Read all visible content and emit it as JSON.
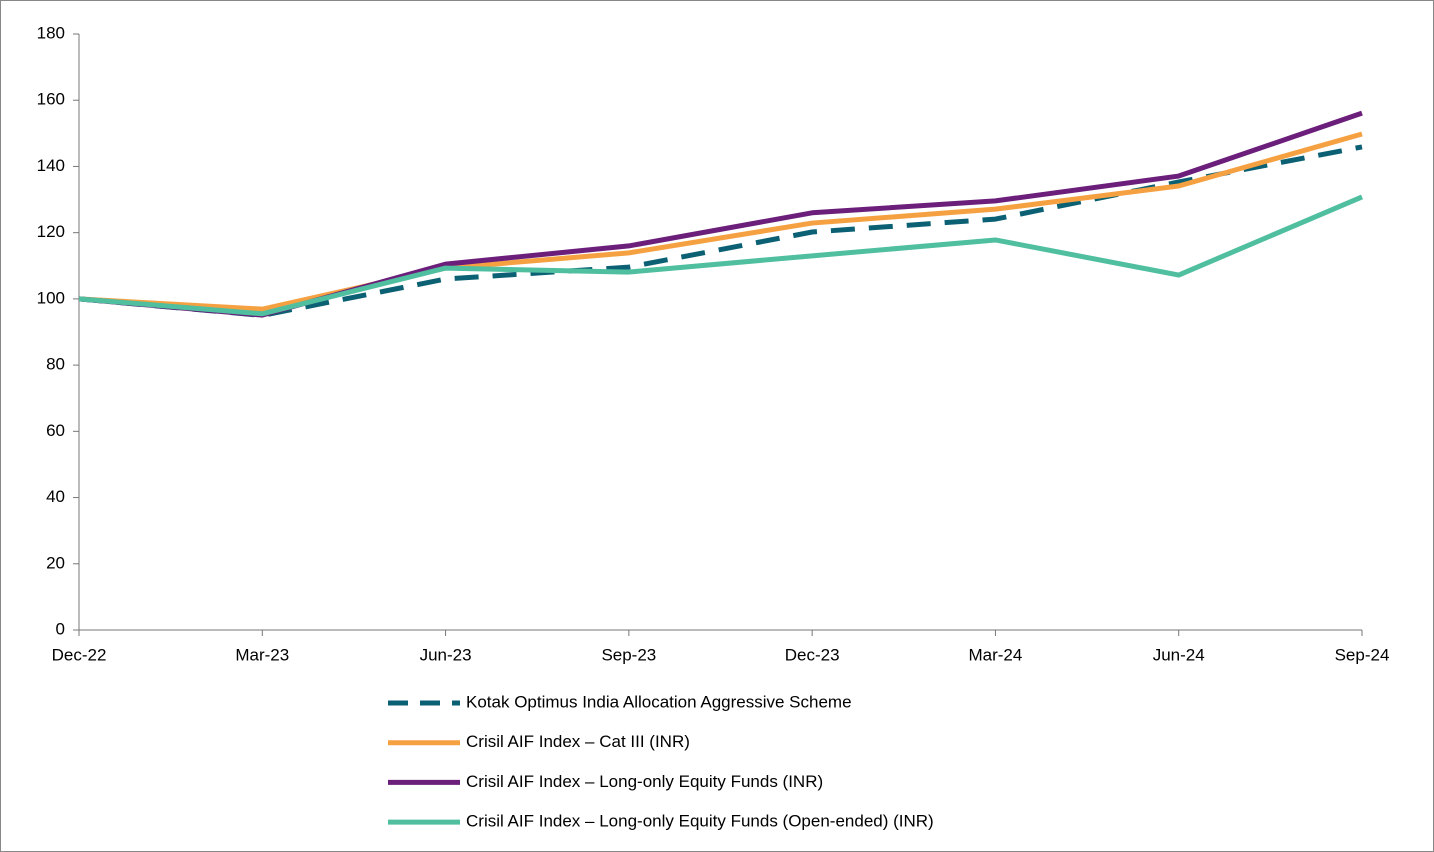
{
  "chart_data": {
    "type": "line",
    "categories": [
      "Dec-22",
      "Mar-23",
      "Jun-23",
      "Sep-23",
      "Dec-23",
      "Mar-24",
      "Jun-24",
      "Sep-24"
    ],
    "series": [
      {
        "name": "Kotak Optimus India Allocation Aggressive Scheme",
        "color": "#0b6173",
        "line_style": "dashed",
        "values": [
          100,
          95,
          106,
          109.6,
          120.2,
          124.1,
          135.3,
          145.9
        ]
      },
      {
        "name": "Crisil AIF Index – Cat III (INR)",
        "color": "#f5a142",
        "line_style": "solid",
        "values": [
          100,
          96.9,
          109.3,
          113.9,
          122.9,
          127.1,
          134.1,
          149.8
        ]
      },
      {
        "name": "Crisil AIF Index – Long-only Equity Funds (INR)",
        "color": "#6b1f7a",
        "line_style": "solid",
        "values": [
          100,
          95.1,
          110.5,
          116,
          126,
          129.6,
          137.1,
          156.1
        ]
      },
      {
        "name": "Crisil AIF Index – Long-only Equity Funds (Open-ended) (INR)",
        "color": "#4fbf9f",
        "line_style": "solid",
        "values": [
          100,
          95.5,
          109.3,
          108.1,
          113,
          117.8,
          107.2,
          130.8
        ]
      }
    ],
    "ylim": [
      0,
      180
    ],
    "yticks": [
      0,
      20,
      40,
      60,
      80,
      100,
      120,
      140,
      160,
      180
    ],
    "grid": false,
    "legend": "bottom"
  }
}
